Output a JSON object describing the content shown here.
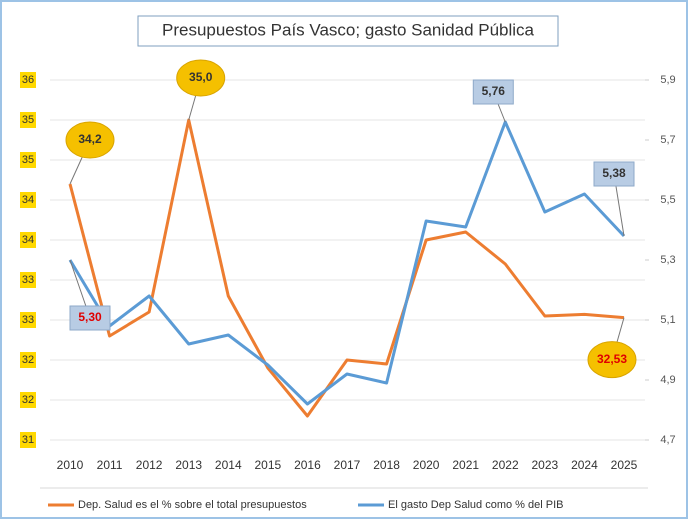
{
  "chart_data": {
    "type": "line",
    "title": "Presupuestos País Vasco; gasto Sanidad Pública",
    "categories": [
      "2010",
      "2011",
      "2012",
      "2013",
      "2014",
      "2015",
      "2016",
      "2017",
      "2018",
      "2020",
      "2021",
      "2022",
      "2023",
      "2024",
      "2025"
    ],
    "series": [
      {
        "name": "Dep. Salud es el % sobre el total presupuestos",
        "color": "#ed7d31",
        "axis": "y",
        "values": [
          34.2,
          32.3,
          32.6,
          35.0,
          32.8,
          31.9,
          31.3,
          32.0,
          31.95,
          33.5,
          33.6,
          33.2,
          32.55,
          32.57,
          32.53
        ],
        "value_labels": [
          "34,2",
          null,
          null,
          "35,0",
          null,
          null,
          null,
          null,
          null,
          null,
          null,
          null,
          null,
          null,
          "32,53"
        ]
      },
      {
        "name": "El gasto Dep Salud como % del PIB",
        "color": "#5b9bd5",
        "axis": "y2",
        "values": [
          5.3,
          5.08,
          5.18,
          5.02,
          5.05,
          4.95,
          4.82,
          4.92,
          4.89,
          5.43,
          5.41,
          5.76,
          5.46,
          5.52,
          5.38
        ],
        "value_labels": [
          "5,30",
          null,
          null,
          null,
          null,
          null,
          null,
          null,
          null,
          null,
          null,
          "5,76",
          null,
          null,
          "5,38"
        ]
      }
    ],
    "ylim": [
      31,
      35.5
    ],
    "yticks": [
      31,
      {
        "value": 31.5,
        "label": "32"
      },
      32,
      {
        "value": 32.5,
        "label": "33"
      },
      33,
      {
        "value": 33.5,
        "label": "34"
      },
      34,
      {
        "value": 34.5,
        "label": "35"
      },
      35,
      {
        "value": 35.5,
        "label": "36"
      }
    ],
    "y2lim": [
      4.7,
      5.9
    ],
    "y2ticks": [
      {
        "value": 4.7,
        "label": "4,7"
      },
      {
        "value": 4.9,
        "label": "4,9"
      },
      {
        "value": 5.1,
        "label": "5,1"
      },
      {
        "value": 5.3,
        "label": "5,3"
      },
      {
        "value": 5.5,
        "label": "5,5"
      },
      {
        "value": 5.7,
        "label": "5,7"
      },
      {
        "value": 5.9,
        "label": "5,9"
      }
    ],
    "grid": true,
    "legend": "bottom"
  }
}
